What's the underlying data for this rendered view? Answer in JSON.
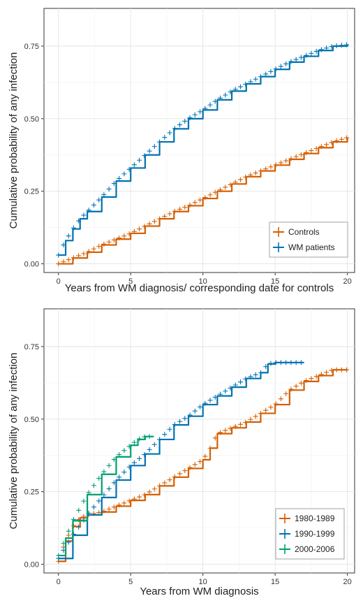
{
  "chart_data": [
    {
      "type": "line",
      "title": "",
      "xlabel": "Years from WM diagnosis/ corresponding date for controls",
      "ylabel": "Cumulative probability of any infection",
      "xlim": [
        -1,
        20.5
      ],
      "ylim": [
        -0.03,
        0.88
      ],
      "x_ticks": [
        "0",
        "5",
        "10",
        "15",
        "20"
      ],
      "x_tick_values": [
        0,
        5,
        10,
        15,
        20
      ],
      "y_ticks": [
        "0.00",
        "0.25",
        "0.50",
        "0.75"
      ],
      "y_tick_values": [
        0,
        0.25,
        0.5,
        0.75
      ],
      "grid": true,
      "legend_position": "bottom-right",
      "series": [
        {
          "name": "Controls",
          "color": "#d55e00",
          "points": [
            [
              0,
              0.0
            ],
            [
              1,
              0.02
            ],
            [
              2,
              0.04
            ],
            [
              3,
              0.065
            ],
            [
              4,
              0.085
            ],
            [
              5,
              0.105
            ],
            [
              6,
              0.13
            ],
            [
              7,
              0.155
            ],
            [
              8,
              0.18
            ],
            [
              9,
              0.2
            ],
            [
              10,
              0.225
            ],
            [
              11,
              0.25
            ],
            [
              12,
              0.275
            ],
            [
              13,
              0.3
            ],
            [
              14,
              0.32
            ],
            [
              15,
              0.34
            ],
            [
              16,
              0.36
            ],
            [
              17,
              0.38
            ],
            [
              18,
              0.4
            ],
            [
              19,
              0.42
            ],
            [
              20,
              0.435
            ]
          ]
        },
        {
          "name": "WM patients",
          "color": "#0072b2",
          "points": [
            [
              0,
              0.03
            ],
            [
              0.5,
              0.08
            ],
            [
              1,
              0.12
            ],
            [
              1.5,
              0.155
            ],
            [
              2,
              0.18
            ],
            [
              3,
              0.23
            ],
            [
              4,
              0.285
            ],
            [
              5,
              0.33
            ],
            [
              6,
              0.375
            ],
            [
              7,
              0.42
            ],
            [
              8,
              0.465
            ],
            [
              9,
              0.5
            ],
            [
              10,
              0.53
            ],
            [
              11,
              0.565
            ],
            [
              12,
              0.595
            ],
            [
              13,
              0.62
            ],
            [
              14,
              0.645
            ],
            [
              15,
              0.67
            ],
            [
              16,
              0.695
            ],
            [
              17,
              0.715
            ],
            [
              18,
              0.735
            ],
            [
              19,
              0.75
            ],
            [
              20,
              0.755
            ]
          ]
        }
      ]
    },
    {
      "type": "line",
      "title": "",
      "xlabel": "Years from WM diagnosis",
      "ylabel": "Cumulative probability of any infection",
      "xlim": [
        -1,
        20.5
      ],
      "ylim": [
        -0.03,
        0.88
      ],
      "x_ticks": [
        "0",
        "5",
        "10",
        "15",
        "20"
      ],
      "x_tick_values": [
        0,
        5,
        10,
        15,
        20
      ],
      "y_ticks": [
        "0.00",
        "0.25",
        "0.50",
        "0.75"
      ],
      "y_tick_values": [
        0,
        0.25,
        0.5,
        0.75
      ],
      "grid": true,
      "legend_position": "bottom-right",
      "series": [
        {
          "name": "1980-1989",
          "color": "#d55e00",
          "points": [
            [
              0,
              0.01
            ],
            [
              0.5,
              0.08
            ],
            [
              1,
              0.13
            ],
            [
              1.5,
              0.16
            ],
            [
              2,
              0.17
            ],
            [
              3,
              0.18
            ],
            [
              4,
              0.2
            ],
            [
              5,
              0.22
            ],
            [
              6,
              0.24
            ],
            [
              7,
              0.27
            ],
            [
              8,
              0.3
            ],
            [
              9,
              0.33
            ],
            [
              10,
              0.36
            ],
            [
              10.5,
              0.4
            ],
            [
              11,
              0.45
            ],
            [
              12,
              0.47
            ],
            [
              13,
              0.49
            ],
            [
              14,
              0.52
            ],
            [
              15,
              0.55
            ],
            [
              16,
              0.6
            ],
            [
              17,
              0.63
            ],
            [
              18,
              0.65
            ],
            [
              19,
              0.67
            ],
            [
              20,
              0.67
            ]
          ]
        },
        {
          "name": "1990-1999",
          "color": "#0072b2",
          "points": [
            [
              0,
              0.02
            ],
            [
              1,
              0.1
            ],
            [
              2,
              0.17
            ],
            [
              3,
              0.23
            ],
            [
              4,
              0.29
            ],
            [
              5,
              0.34
            ],
            [
              6,
              0.38
            ],
            [
              7,
              0.43
            ],
            [
              8,
              0.48
            ],
            [
              9,
              0.51
            ],
            [
              10,
              0.55
            ],
            [
              11,
              0.58
            ],
            [
              12,
              0.61
            ],
            [
              13,
              0.64
            ],
            [
              14,
              0.66
            ],
            [
              14.5,
              0.69
            ],
            [
              15,
              0.695
            ],
            [
              16,
              0.695
            ],
            [
              17,
              0.695
            ]
          ]
        },
        {
          "name": "2000-2006",
          "color": "#009e73",
          "points": [
            [
              0,
              0.03
            ],
            [
              0.5,
              0.09
            ],
            [
              1,
              0.15
            ],
            [
              2,
              0.24
            ],
            [
              3,
              0.31
            ],
            [
              4,
              0.37
            ],
            [
              5,
              0.41
            ],
            [
              5.5,
              0.43
            ],
            [
              6,
              0.44
            ],
            [
              6.6,
              0.44
            ]
          ]
        }
      ]
    }
  ]
}
